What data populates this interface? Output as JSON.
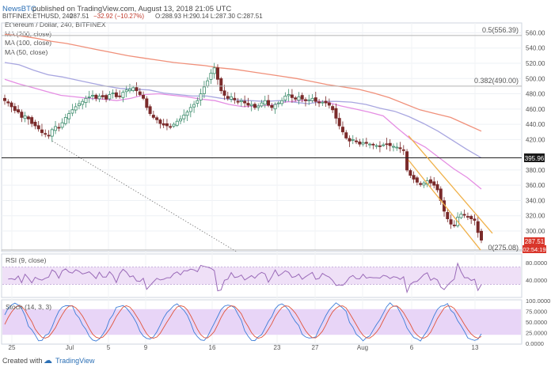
{
  "header": {
    "source": "NewsBTC",
    "published": "published on TradingView.com, August 13, 2018 21:05 UTC",
    "ticker": "BITFINEX:ETHUSD, 240",
    "last": "287.51",
    "change": "−32.92 (−10.27%)",
    "ohlc": "O:288.93 H:290.14 L:287.30 C:287.51"
  },
  "legend": {
    "title": "Ethereum / Dollar, 240, BITFINEX",
    "ma200": "MA (200, close)",
    "ma100": "MA (100, close)",
    "ma50": "MA (50, close)"
  },
  "fib": {
    "f05": "0.5(556.39)",
    "f0382": "0.382(490.00)",
    "f0": "0(275.08)"
  },
  "price_tags": {
    "level": "395.96",
    "last": "287.51",
    "countdown": "02:54:19"
  },
  "rsi_label": "RSI (9, close)",
  "stoch_label": "Stoch (14, 3, 3)",
  "footer": {
    "created": "Created with",
    "brand": "TradingView"
  },
  "colors": {
    "up": "#3c8c6c",
    "down": "#7a2a2a",
    "ma200": "#f0907a",
    "ma100": "#a8a6e0",
    "ma50": "#e58ee3",
    "channel": "#f0b14a",
    "rsi_fill": "#efe0f7",
    "stoch_fill": "#e8d5f7"
  },
  "chart_data": {
    "type": "candlestick",
    "x_ticks": [
      "25",
      "Jul",
      "5",
      "9",
      "16",
      "23",
      "27",
      "Aug",
      "6",
      "13"
    ],
    "y_ticks": [
      "560.00",
      "540.00",
      "520.00",
      "500.00",
      "480.00",
      "460.00",
      "440.00",
      "420.00",
      "380.00",
      "360.00",
      "340.00",
      "320.00",
      "300.00"
    ],
    "ylim": [
      270,
      570
    ],
    "close": [
      471,
      468,
      463,
      458,
      456,
      449,
      451,
      447,
      441,
      438,
      434,
      429,
      427,
      425,
      433,
      437,
      435,
      442,
      449,
      454,
      459,
      463,
      467,
      470,
      474,
      476,
      478,
      474,
      477,
      476,
      473,
      479,
      481,
      476,
      477,
      482,
      485,
      486,
      488,
      484,
      479,
      474,
      462,
      454,
      449,
      446,
      441,
      439,
      438,
      436,
      440,
      444,
      447,
      452,
      456,
      462,
      466,
      471,
      480,
      489,
      497,
      507,
      514,
      499,
      484,
      478,
      474,
      476,
      472,
      469,
      471,
      468,
      465,
      466,
      462,
      464,
      468,
      471,
      465,
      462,
      466,
      468,
      471,
      477,
      479,
      475,
      473,
      476,
      473,
      471,
      472,
      474,
      470,
      468,
      469,
      468,
      465,
      459,
      448,
      438,
      430,
      422,
      418,
      420,
      417,
      414,
      416,
      415,
      414,
      413,
      412,
      411,
      413,
      414,
      412,
      411,
      410,
      408,
      406,
      380,
      373,
      368,
      364,
      361,
      363,
      366,
      363,
      360,
      354,
      340,
      326,
      316,
      309,
      307,
      318,
      322,
      321,
      319,
      316,
      314,
      298,
      288
    ],
    "ma200": [
      558,
      556,
      553,
      549,
      546,
      542,
      538,
      534,
      530,
      527,
      524,
      521,
      519,
      517,
      514,
      512,
      509,
      506,
      503,
      500,
      496,
      492,
      489,
      486,
      481,
      475,
      467,
      459,
      454,
      449,
      440,
      431
    ],
    "ma100": [
      521,
      518,
      511,
      505,
      502,
      498,
      494,
      490,
      487,
      486,
      485,
      481,
      479,
      477,
      477,
      474,
      472,
      471,
      470,
      471,
      469,
      467,
      470,
      470,
      469,
      466,
      461,
      457,
      450,
      441,
      431,
      419,
      407,
      396
    ],
    "ma50": [
      499,
      493,
      488,
      483,
      478,
      476,
      474,
      473,
      471,
      474,
      479,
      480,
      478,
      476,
      473,
      471,
      466,
      463,
      464,
      465,
      469,
      471,
      471,
      469,
      464,
      460,
      456,
      451,
      435,
      420,
      410,
      396,
      382,
      370,
      355
    ],
    "channel_upper": [
      [
        406,
        425
      ],
      [
        322,
        297
      ]
    ],
    "channel_lower": [
      [
        387,
        393
      ],
      [
        270,
        275
      ]
    ],
    "rsi": {
      "ylim": [
        0,
        100
      ],
      "y_ticks": [
        "80.0000",
        "40.0000"
      ],
      "band": [
        30,
        70
      ]
    },
    "stoch": {
      "ylim": [
        0,
        100
      ],
      "y_ticks": [
        "100.0000",
        "75.0000",
        "50.0000",
        "25.0000",
        "0.0000"
      ],
      "band": [
        20,
        80
      ]
    }
  }
}
